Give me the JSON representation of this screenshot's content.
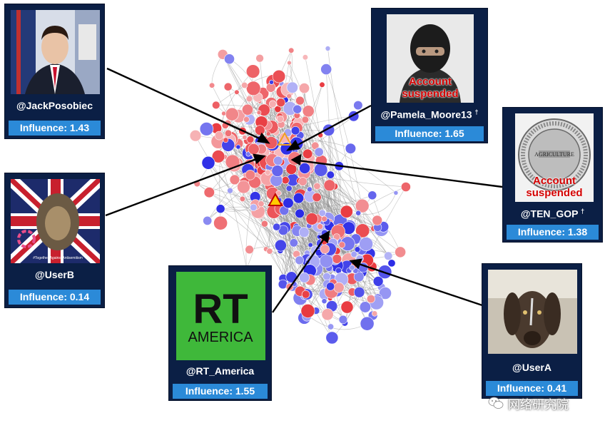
{
  "accounts": [
    {
      "handle": "@JackPosobiec",
      "influence_label": "Influence: 1.43",
      "suspended": false
    },
    {
      "handle": "@Pamela_Moore13",
      "dagger": "†",
      "influence_label": "Influence: 1.65",
      "suspended": true,
      "suspended_text": "Account suspended"
    },
    {
      "handle": "@TEN_GOP",
      "dagger": "†",
      "influence_label": "Influence: 1.38",
      "suspended": true,
      "suspended_text": "Account suspended",
      "seal_text": "AGRICULTURE"
    },
    {
      "handle": "@UserB",
      "influence_label": "Influence: 0.14",
      "suspended": false,
      "poster_text": "#Together Against Antisemitism"
    },
    {
      "handle": "@RT_America",
      "influence_label": "Influence: 1.55",
      "suspended": false,
      "logo_top": "RT",
      "logo_bottom": "AMERICA"
    },
    {
      "handle": "@UserA",
      "influence_label": "Influence: 0.41",
      "suspended": false
    }
  ],
  "colors": {
    "card_bg": "#0b1f45",
    "influence_bar": "#2b8ad8",
    "red_node": "#e8363c",
    "blue_node": "#2a2ae6",
    "edge": "#8a8a8a",
    "suspended_text": "#d40000",
    "rt_green": "#3fb83a"
  },
  "watermark": {
    "text": "网络研究院",
    "icon": "wechat-icon"
  }
}
